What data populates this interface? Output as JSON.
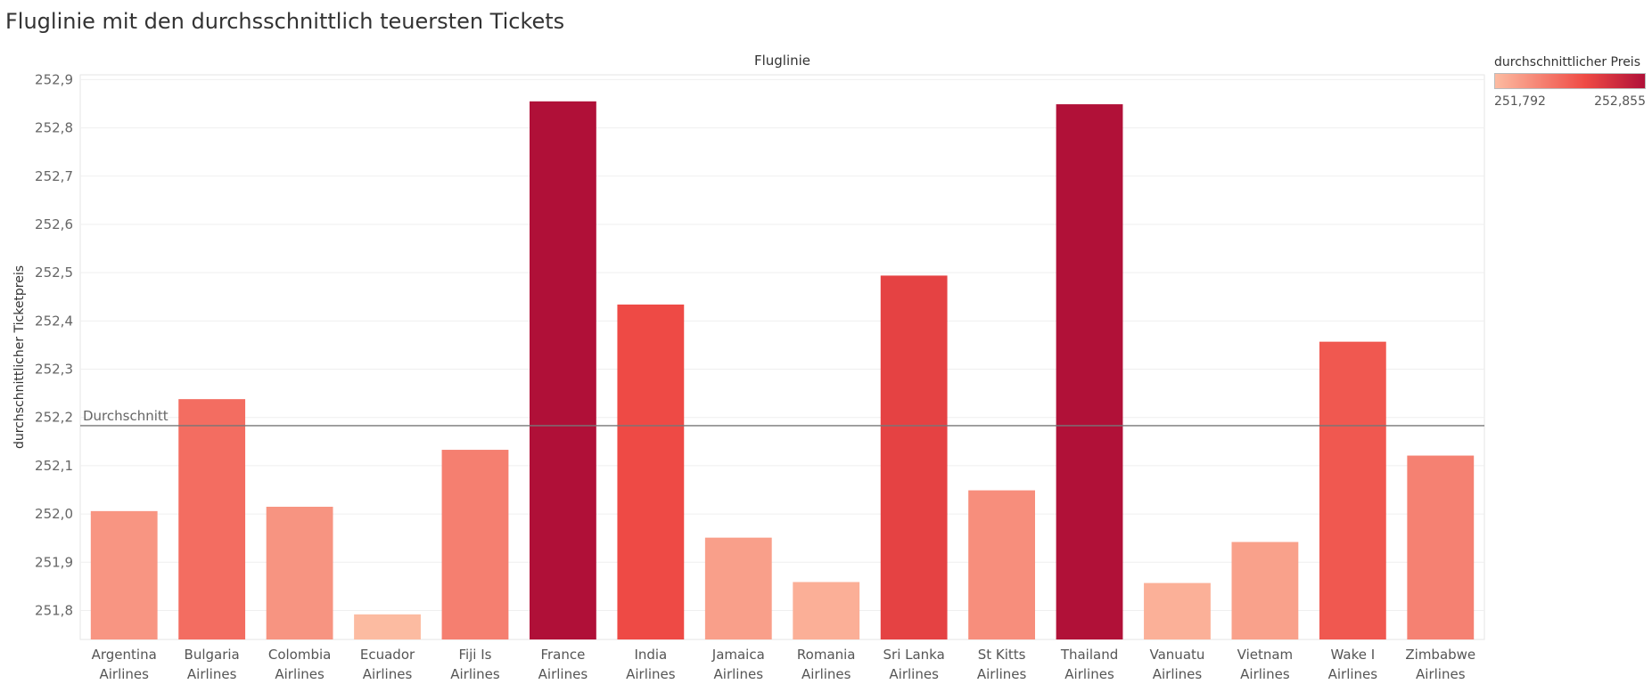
{
  "title": "Fluglinie mit den durchsschnittlich teuersten Tickets",
  "legend": {
    "title": "durchschnittlicher Preis",
    "min_label": "251,792",
    "max_label": "252,855",
    "color_low": "#fcbba1",
    "color_mid": "#ef4b45",
    "color_high": "#b01038"
  },
  "chart_data": {
    "type": "bar",
    "title": "Fluglinie mit den durchsschnittlich teuersten Tickets",
    "xlabel": "Fluglinie",
    "ylabel": "durchschnittlicher Ticketpreis",
    "categories": [
      "Argentina Airlines",
      "Bulgaria Airlines",
      "Colombia Airlines",
      "Ecuador Airlines",
      "Fiji Is Airlines",
      "France Airlines",
      "India Airlines",
      "Jamaica Airlines",
      "Romania Airlines",
      "Sri Lanka Airlines",
      "St Kitts Airlines",
      "Thailand Airlines",
      "Vanuatu Airlines",
      "Vietnam Airlines",
      "Wake I Airlines",
      "Zimbabwe Airlines"
    ],
    "values": [
      252.006,
      252.238,
      252.015,
      251.792,
      252.133,
      252.855,
      252.434,
      251.951,
      251.859,
      252.494,
      252.049,
      252.849,
      251.857,
      251.942,
      252.357,
      252.121
    ],
    "ylim": [
      251.74,
      252.91
    ],
    "yticks": [
      {
        "value": 251.8,
        "label": "251,8"
      },
      {
        "value": 251.9,
        "label": "251,9"
      },
      {
        "value": 252.0,
        "label": "252,0"
      },
      {
        "value": 252.1,
        "label": "252,1"
      },
      {
        "value": 252.2,
        "label": "252,2"
      },
      {
        "value": 252.3,
        "label": "252,3"
      },
      {
        "value": 252.4,
        "label": "252,4"
      },
      {
        "value": 252.5,
        "label": "252,5"
      },
      {
        "value": 252.6,
        "label": "252,6"
      },
      {
        "value": 252.7,
        "label": "252,7"
      },
      {
        "value": 252.8,
        "label": "252,8"
      },
      {
        "value": 252.9,
        "label": "252,9"
      }
    ],
    "reference_line": {
      "label": "Durchschnitt",
      "value": 252.183
    },
    "grid": true,
    "legend_position": "top-right"
  }
}
